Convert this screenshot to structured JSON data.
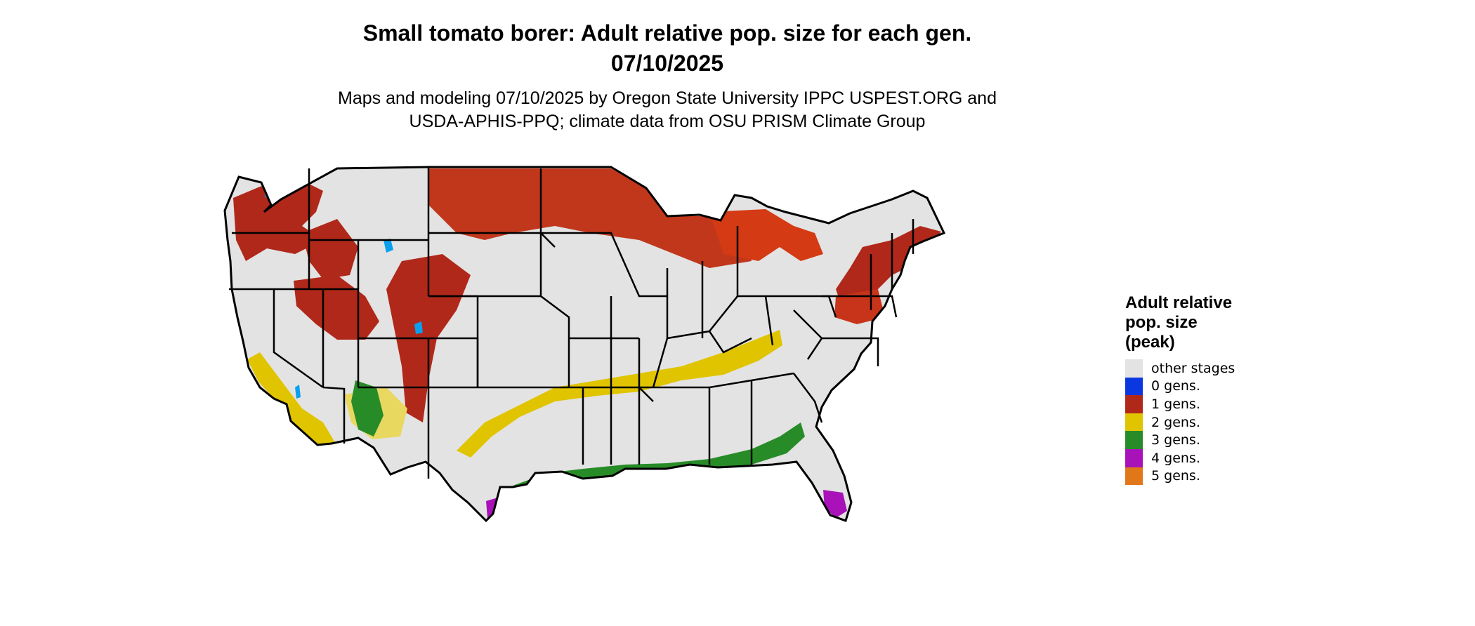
{
  "title": {
    "line1": "Small tomato borer: Adult relative pop. size for each gen.",
    "line2": "07/10/2025"
  },
  "subtitle": {
    "line1": "Maps and modeling 07/10/2025 by Oregon State University IPPC USPEST.ORG and",
    "line2": "USDA-APHIS-PPQ; climate data from OSU PRISM Climate Group"
  },
  "legend": {
    "title_lines": [
      "Adult relative",
      "pop. size",
      "(peak)"
    ],
    "items": [
      {
        "label": "other stages",
        "color": "#e3e3e3"
      },
      {
        "label": "0 gens.",
        "color": "#0a37e0"
      },
      {
        "label": "1 gens.",
        "color": "#b0281a"
      },
      {
        "label": "2 gens.",
        "color": "#e0c400"
      },
      {
        "label": "3 gens.",
        "color": "#278c27"
      },
      {
        "label": "4 gens.",
        "color": "#a812b8"
      },
      {
        "label": "5 gens.",
        "color": "#e0781a"
      }
    ]
  },
  "map": {
    "region": "Contiguous United States",
    "zones": [
      {
        "name": "gen1-northwest",
        "category": "1 gens."
      },
      {
        "name": "gen1-northern-plains",
        "category": "1 gens."
      },
      {
        "name": "gen1-great-lakes",
        "category": "1 gens."
      },
      {
        "name": "gen1-northeast",
        "category": "1 gens."
      },
      {
        "name": "gen1-southwest-mountains",
        "category": "1 gens."
      },
      {
        "name": "gen2-california",
        "category": "2 gens."
      },
      {
        "name": "gen2-central-belt",
        "category": "2 gens."
      },
      {
        "name": "gen3-gulf-coast",
        "category": "3 gens."
      },
      {
        "name": "gen3-arizona",
        "category": "3 gens."
      },
      {
        "name": "gen4-south-texas",
        "category": "4 gens."
      },
      {
        "name": "gen4-south-florida",
        "category": "4 gens."
      },
      {
        "name": "gen0-rockies",
        "category": "0 gens."
      }
    ]
  }
}
